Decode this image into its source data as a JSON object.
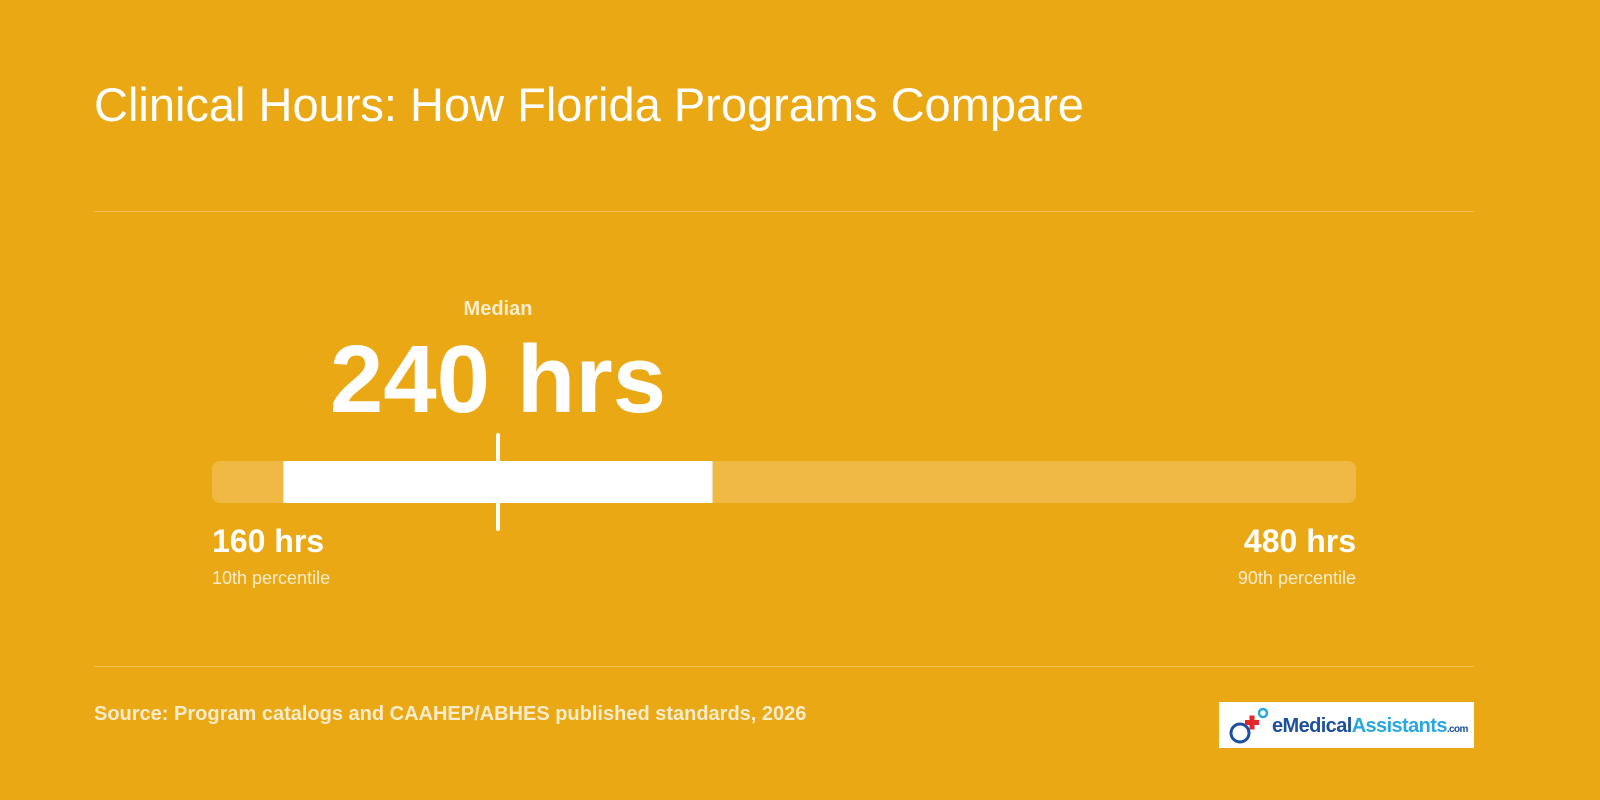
{
  "title": "Clinical Hours: How Florida Programs Compare",
  "range": {
    "min": {
      "value": 160,
      "label": "160 hrs",
      "note": "10th percentile"
    },
    "max": {
      "value": 480,
      "label": "480 hrs",
      "note": "90th percentile"
    },
    "median": {
      "value": 240,
      "label": "240 hrs",
      "caption": "Median"
    },
    "band": [
      180,
      300
    ]
  },
  "source": "Source: Program catalogs and CAAHEP/ABHES published standards, 2026",
  "logo": {
    "part1": "eMedical",
    "part2": "Assistants",
    "suffix": ".com"
  }
}
